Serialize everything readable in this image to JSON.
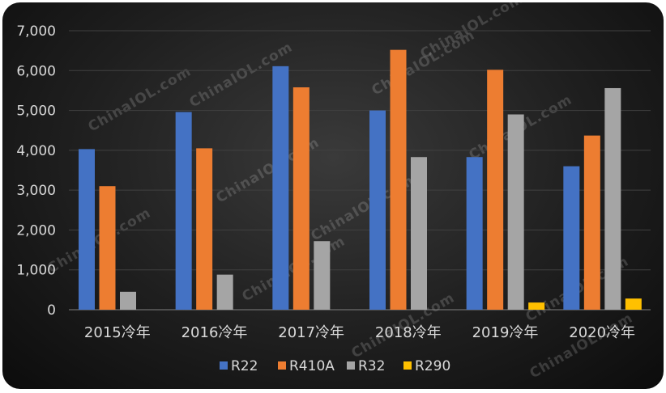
{
  "watermark": "ChinaIOL.com",
  "chart_data": {
    "type": "bar",
    "categories": [
      "2015冷年",
      "2016冷年",
      "2017冷年",
      "2018冷年",
      "2019冷年",
      "2020冷年"
    ],
    "series": [
      {
        "name": "R22",
        "color": "#4472c4",
        "values": [
          4030,
          4960,
          6110,
          5000,
          3830,
          3600
        ]
      },
      {
        "name": "R410A",
        "color": "#ed7d31",
        "values": [
          3100,
          4050,
          5580,
          6520,
          6020,
          4370
        ]
      },
      {
        "name": "R32",
        "color": "#a5a5a5",
        "values": [
          450,
          880,
          1720,
          3830,
          4900,
          5560
        ]
      },
      {
        "name": "R290",
        "color": "#ffc000",
        "values": [
          0,
          0,
          0,
          0,
          180,
          280
        ]
      }
    ],
    "y_ticks": [
      "0",
      "1,000",
      "2,000",
      "3,000",
      "4,000",
      "5,000",
      "6,000",
      "7,000"
    ],
    "ylim": [
      0,
      7000
    ],
    "grid": true,
    "legend_position": "bottom"
  }
}
